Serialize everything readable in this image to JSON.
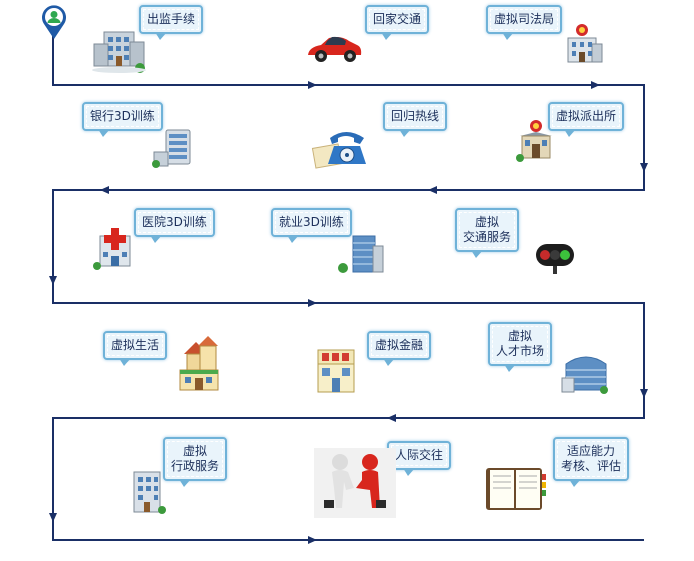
{
  "colors": {
    "path": "#1a2f66",
    "bubble_fill": "#e9f4fb",
    "bubble_border": "#6fb2d8",
    "text": "#1c2f5a"
  },
  "steps": [
    {
      "lines": [
        "出监手续"
      ],
      "icon": "building-icon"
    },
    {
      "lines": [
        "回家交通"
      ],
      "icon": "red-car-icon"
    },
    {
      "lines": [
        "虚拟司法局"
      ],
      "icon": "court-building-icon"
    },
    {
      "lines": [
        "银行3D训练"
      ],
      "icon": "bank-server-icon"
    },
    {
      "lines": [
        "回归热线"
      ],
      "icon": "telephone-icon"
    },
    {
      "lines": [
        "虚拟派出所"
      ],
      "icon": "police-station-icon"
    },
    {
      "lines": [
        "医院3D训练"
      ],
      "icon": "hospital-icon"
    },
    {
      "lines": [
        "就业3D训练"
      ],
      "icon": "office-tower-icon"
    },
    {
      "lines": [
        "虚拟",
        "交通服务"
      ],
      "icon": "traffic-light-icon"
    },
    {
      "lines": [
        "虚拟生活"
      ],
      "icon": "houses-icon"
    },
    {
      "lines": [
        "虚拟金融"
      ],
      "icon": "shop-icon"
    },
    {
      "lines": [
        "虚拟",
        "人才市场"
      ],
      "icon": "curved-building-icon"
    },
    {
      "lines": [
        "虚拟",
        "行政服务"
      ],
      "icon": "admin-building-icon"
    },
    {
      "lines": [
        "人际交往"
      ],
      "icon": "handshake-icon"
    },
    {
      "lines": [
        "适应能力",
        "考核、评估"
      ],
      "icon": "notebook-icon"
    }
  ],
  "start_marker": {
    "icon": "user-pin-icon"
  }
}
